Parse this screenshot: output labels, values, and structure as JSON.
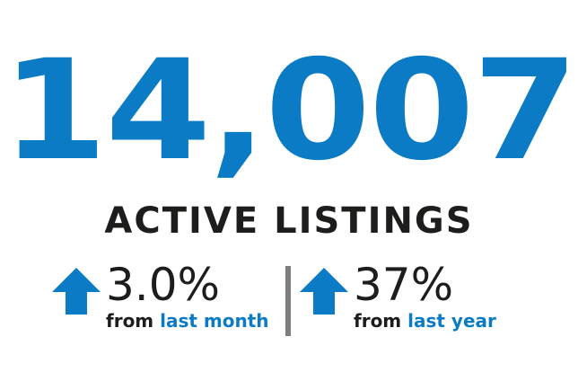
{
  "headline": {
    "value": "14,007",
    "label": "ACTIVE LISTINGS"
  },
  "stats": [
    {
      "direction": "up-arrow-icon",
      "value": "3.0%",
      "from_text": "from",
      "period_text": "last month"
    },
    {
      "direction": "up-arrow-icon",
      "value": "37%",
      "from_text": "from",
      "period_text": "last year"
    }
  ],
  "colors": {
    "accent": "#0a7bc4",
    "text": "#1d1d1b",
    "divider": "#7d7d7d"
  }
}
